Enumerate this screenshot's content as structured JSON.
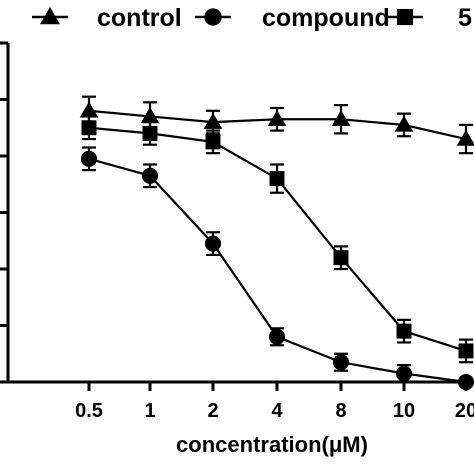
{
  "chart_data": {
    "type": "line",
    "title": "",
    "xlabel": "concentration(μM)",
    "ylabel": "",
    "categories": [
      "0.5",
      "1",
      "2",
      "4",
      "8",
      "10",
      "20"
    ],
    "ylim": [
      0,
      120
    ],
    "y_ticks": [
      0,
      20,
      40,
      60,
      80,
      100,
      120
    ],
    "grid": false,
    "legend": "top",
    "series": [
      {
        "name": "control",
        "marker": "triangle",
        "values": [
          96,
          94,
          92,
          93,
          93,
          91,
          86
        ],
        "errors": [
          5,
          5,
          4,
          4,
          5,
          4,
          5
        ]
      },
      {
        "name": "compound",
        "marker": "circle",
        "values": [
          79,
          73,
          49,
          16,
          7,
          3,
          0
        ],
        "errors": [
          4,
          4,
          4,
          3,
          3,
          3,
          1
        ]
      },
      {
        "name": "5",
        "marker": "square",
        "values": [
          90,
          88,
          85,
          72,
          44,
          18,
          11
        ],
        "errors": [
          4,
          4,
          4,
          5,
          4,
          4,
          4
        ]
      }
    ]
  }
}
